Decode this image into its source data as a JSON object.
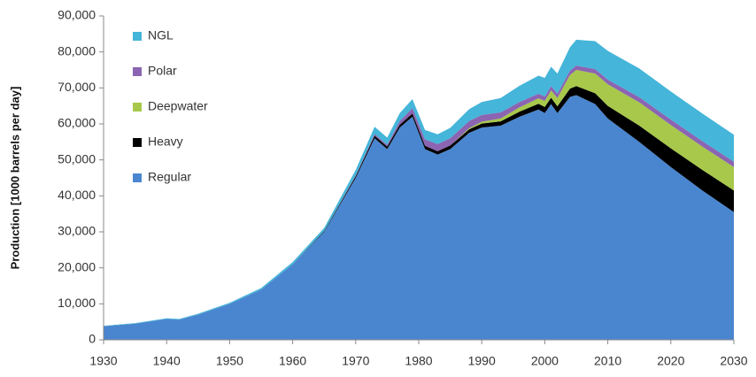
{
  "chart_data": {
    "type": "stacked_area",
    "y_label": "Production [1000 barrels per day]",
    "x": [
      1930,
      1935,
      1940,
      1942,
      1945,
      1950,
      1955,
      1960,
      1965,
      1970,
      1973,
      1975,
      1977,
      1979,
      1981,
      1983,
      1985,
      1988,
      1990,
      1993,
      1996,
      1999,
      2000,
      2001,
      2002,
      2004,
      2005,
      2008,
      2010,
      2015,
      2020,
      2025,
      2030
    ],
    "series": [
      {
        "name": "Regular",
        "color": "#4a86cf",
        "values": [
          3800,
          4500,
          5800,
          5600,
          7000,
          10000,
          14000,
          21000,
          30000,
          45000,
          56000,
          53000,
          59000,
          62000,
          53000,
          51500,
          53000,
          57500,
          59000,
          59500,
          62000,
          64000,
          63000,
          65500,
          63000,
          67500,
          68000,
          65500,
          61500,
          55000,
          48000,
          41500,
          35500
        ]
      },
      {
        "name": "Heavy",
        "color": "#000000",
        "values": [
          0,
          0,
          0,
          0,
          0,
          0,
          0,
          0,
          200,
          500,
          700,
          700,
          800,
          900,
          900,
          900,
          1000,
          1000,
          1100,
          1200,
          1400,
          1600,
          1700,
          1800,
          1900,
          2300,
          2500,
          3000,
          3500,
          4500,
          5200,
          5700,
          6000
        ]
      },
      {
        "name": "Deepwater",
        "color": "#a7c84a",
        "values": [
          0,
          0,
          0,
          0,
          0,
          0,
          0,
          0,
          0,
          0,
          0,
          0,
          0,
          0,
          0,
          0,
          0,
          300,
          500,
          800,
          1200,
          1500,
          1700,
          2000,
          2300,
          3800,
          4500,
          5500,
          6000,
          6500,
          6500,
          6500,
          6500
        ]
      },
      {
        "name": "Polar",
        "color": "#8b64b2",
        "values": [
          0,
          0,
          0,
          0,
          0,
          0,
          0,
          0,
          0,
          200,
          500,
          500,
          1000,
          1500,
          1800,
          2000,
          2000,
          2000,
          1900,
          1700,
          1500,
          1300,
          1200,
          1200,
          1200,
          1200,
          1200,
          1200,
          1300,
          1400,
          1500,
          1500,
          1500
        ]
      },
      {
        "name": "NGL",
        "color": "#45b5d9",
        "values": [
          100,
          150,
          200,
          200,
          250,
          300,
          400,
          600,
          900,
          1500,
          2000,
          2000,
          2200,
          2500,
          2600,
          2700,
          2900,
          3300,
          3600,
          4000,
          4500,
          5000,
          5200,
          5400,
          5600,
          6500,
          7200,
          7800,
          8000,
          8000,
          7800,
          7700,
          7500
        ]
      }
    ],
    "xlim": [
      1930,
      2030
    ],
    "xticks": [
      1930,
      1940,
      1950,
      1960,
      1970,
      1980,
      1990,
      2000,
      2010,
      2020,
      2030
    ],
    "ylim": [
      0,
      90000
    ],
    "yticks": [
      0,
      {
        "value": 10000,
        "label": "10,000"
      },
      {
        "value": 20000,
        "label": "20,000"
      },
      {
        "value": 30000,
        "label": "30,000"
      },
      {
        "value": 40000,
        "label": "40,000"
      },
      {
        "value": 50000,
        "label": "50,000"
      },
      {
        "value": 60000,
        "label": "60,000"
      },
      {
        "value": 70000,
        "label": "70,000"
      },
      {
        "value": 80000,
        "label": "80,000"
      },
      {
        "value": 90000,
        "label": "90,000"
      }
    ],
    "legend": "upper left"
  }
}
